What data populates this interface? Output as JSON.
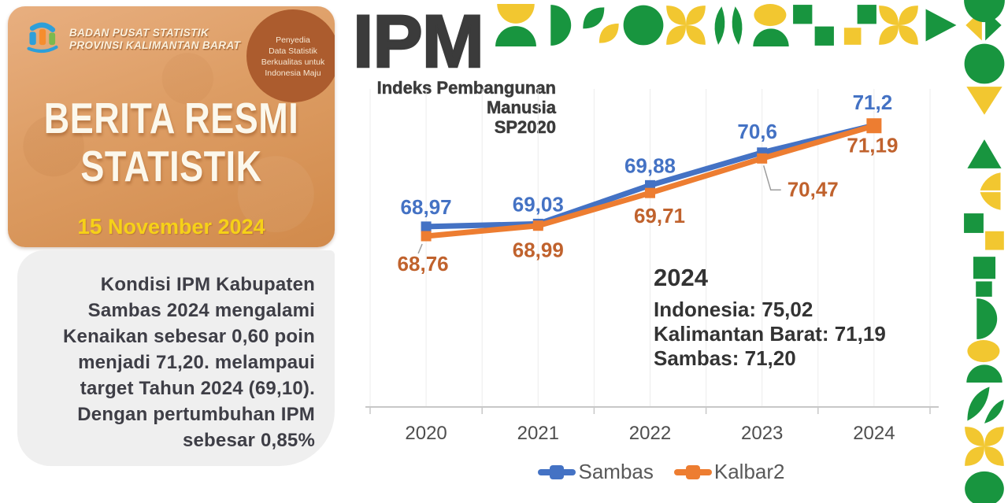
{
  "left_card": {
    "org_lines": "BADAN PUSAT STATISTIK\nPROVINSI KALIMANTAN BARAT",
    "badge_lines": "Penyedia\nData Statistik\nBerkualitas untuk\nIndonesia Maju",
    "title": "BERITA RESMI\nSTATISTIK",
    "date_day": "15",
    "date_rest": " November 2024"
  },
  "summary_card": {
    "text": "Kondisi IPM Kabupaten\nSambas 2024 mengalami\nKenaikan sebesar 0,60 poin\nmenjadi 71,20. melampaui\ntarget Tahun 2024 (69,10).\nDengan pertumbuhan IPM\nsebesar 0,85%"
  },
  "header": {
    "title": "IPM",
    "subtitle": "Indeks Pembangunan\nManusia\nSP2020"
  },
  "annotation": {
    "heading": "2024",
    "lines": [
      "Indonesia: 75,02",
      "Kalimantan Barat: 71,19",
      "Sambas: 71,20"
    ]
  },
  "chart_data": {
    "type": "line",
    "title": "IPM — Indeks Pembangunan Manusia SP2020",
    "x": [
      "2020",
      "2021",
      "2022",
      "2023",
      "2024"
    ],
    "series": [
      {
        "name": "Sambas",
        "color": "#4472C4",
        "label_color": "#4472C4",
        "label_side": "above",
        "values": [
          68.97,
          69.03,
          69.88,
          70.6,
          71.2
        ],
        "labels": [
          "68,97",
          "69,03",
          "69,88",
          "70,6",
          "71,2"
        ]
      },
      {
        "name": "Kalbar2",
        "color": "#ED7D31",
        "label_color": "#C0622D",
        "label_side": "below",
        "values": [
          68.76,
          68.99,
          69.71,
          70.47,
          71.19
        ],
        "labels": [
          "68,76",
          "68,99",
          "69,71",
          "70,47",
          "71,19"
        ]
      }
    ],
    "ylim": [
      65,
      72
    ],
    "grid": "vertical-only",
    "legend_position": "bottom",
    "axis_color": "#C8C8C8",
    "grid_color": "#ECECEC",
    "tick_label_color": "#4E4E4E"
  },
  "decor": {
    "green": "#18953F",
    "yellow": "#F2C730",
    "top_tiles": [
      "hourglass",
      "halfmoon_right",
      "leaf_diag",
      "circle",
      "petals_x",
      "ears_up",
      "blob_dome",
      "checker_a",
      "checker_b",
      "petals_x",
      "tri_right",
      "bowtie"
    ],
    "right_tiles": [
      "dome_down",
      "circle",
      "tri_down",
      "tri_up",
      "chevron_yellow",
      "stair",
      "square_pair",
      "halfmoon_right",
      "blob_dome",
      "leaves_green",
      "petals_x",
      "ellipse"
    ]
  }
}
